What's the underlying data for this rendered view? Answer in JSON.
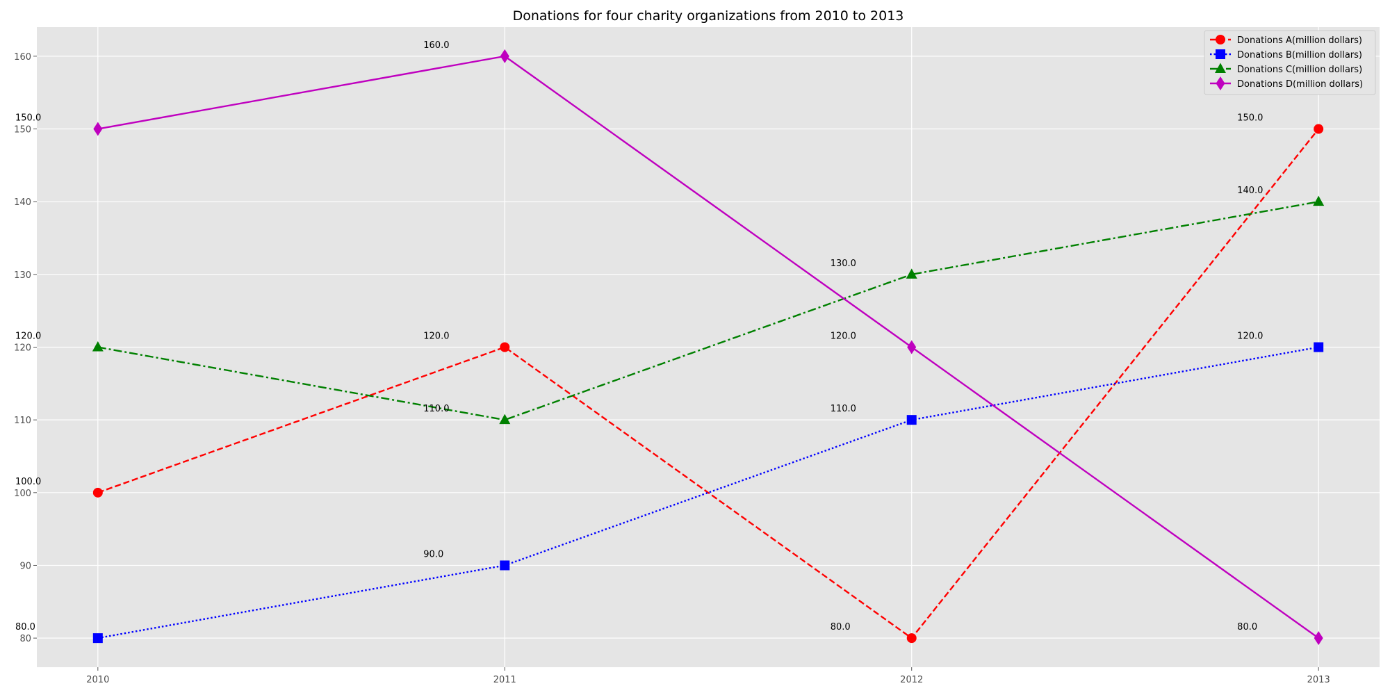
{
  "chart_data": {
    "type": "line",
    "title": "Donations for four charity organizations from 2010 to 2013",
    "xlabel": "",
    "ylabel": "",
    "categories": [
      "2010",
      "2011",
      "2012",
      "2013"
    ],
    "x": [
      2010,
      2011,
      2012,
      2013
    ],
    "xlim": [
      2009.85,
      2013.15
    ],
    "ylim": [
      76,
      164
    ],
    "yticks": [
      80,
      90,
      100,
      110,
      120,
      130,
      140,
      150,
      160
    ],
    "grid": true,
    "legend_position": "top-right",
    "background": "#e5e5e5",
    "series": [
      {
        "name": "Donations A(million dollars)",
        "values": [
          100,
          120,
          80,
          150
        ],
        "labels": [
          "100.0",
          "120.0",
          "80.0",
          "150.0"
        ],
        "color": "#ff0000",
        "line_style": "dashed",
        "marker": "circle"
      },
      {
        "name": "Donations B(million dollars)",
        "values": [
          80,
          90,
          110,
          120
        ],
        "labels": [
          "80.0",
          "90.0",
          "110.0",
          "120.0"
        ],
        "color": "#0000ff",
        "line_style": "dotted",
        "marker": "square"
      },
      {
        "name": "Donations C(million dollars)",
        "values": [
          120,
          110,
          130,
          140
        ],
        "labels": [
          "120.0",
          "110.0",
          "130.0",
          "140.0"
        ],
        "color": "#008000",
        "line_style": "dashdot",
        "marker": "triangle"
      },
      {
        "name": "Donations D(million dollars)",
        "values": [
          150,
          160,
          120,
          80
        ],
        "labels": [
          "150.0",
          "160.0",
          "120.0",
          "80.0"
        ],
        "color": "#bf00bf",
        "line_style": "solid",
        "marker": "diamond"
      }
    ]
  }
}
